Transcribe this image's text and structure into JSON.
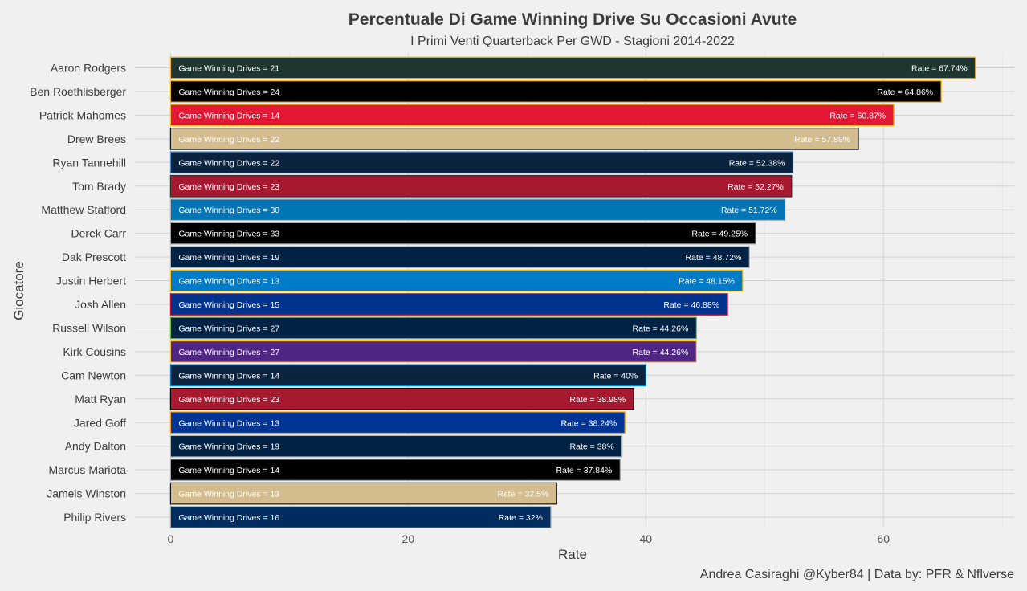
{
  "chart_data": {
    "type": "bar",
    "orientation": "horizontal",
    "title": "Percentuale Di Game Winning Drive Su Occasioni Avute",
    "subtitle": "I Primi Venti Quarterback Per GWD - Stagioni 2014-2022",
    "xlabel": "Rate",
    "ylabel": "Giocatore",
    "caption": "Andrea Casiraghi @Kyber84 | Data by: PFR & Nflverse",
    "xlim": [
      -3,
      71
    ],
    "xticks": [
      0,
      20,
      40,
      60
    ],
    "grid": true,
    "inner_label_prefix": "Game Winning Drives = ",
    "value_label_prefix": "Rate = ",
    "value_label_suffix": "%",
    "bars": [
      {
        "player": "Aaron Rodgers",
        "rate": 67.74,
        "rate_label": "67.74",
        "gwd": 21,
        "fill": "#203731",
        "border": "#FFB612",
        "text": "#ffffff"
      },
      {
        "player": "Ben Roethlisberger",
        "rate": 64.86,
        "rate_label": "64.86",
        "gwd": 24,
        "fill": "#000000",
        "border": "#FFB612",
        "text": "#ffffff"
      },
      {
        "player": "Patrick Mahomes",
        "rate": 60.87,
        "rate_label": "60.87",
        "gwd": 14,
        "fill": "#E31837",
        "border": "#FFB81C",
        "text": "#ffffff"
      },
      {
        "player": "Drew Brees",
        "rate": 57.89,
        "rate_label": "57.89",
        "gwd": 22,
        "fill": "#D3BC8D",
        "border": "#101820",
        "text": "#ffffff"
      },
      {
        "player": "Ryan Tannehill",
        "rate": 52.38,
        "rate_label": "52.38",
        "gwd": 22,
        "fill": "#0C2340",
        "border": "#4B92DB",
        "text": "#ffffff"
      },
      {
        "player": "Tom Brady",
        "rate": 52.27,
        "rate_label": "52.27",
        "gwd": 23,
        "fill": "#A71930",
        "border": "#322F2B",
        "text": "#ffffff"
      },
      {
        "player": "Matthew Stafford",
        "rate": 51.72,
        "rate_label": "51.72",
        "gwd": 30,
        "fill": "#0076B6",
        "border": "#B0B7BC",
        "text": "#ffffff"
      },
      {
        "player": "Derek Carr",
        "rate": 49.25,
        "rate_label": "49.25",
        "gwd": 33,
        "fill": "#000000",
        "border": "#A5ACAF",
        "text": "#ffffff"
      },
      {
        "player": "Dak Prescott",
        "rate": 48.72,
        "rate_label": "48.72",
        "gwd": 19,
        "fill": "#002244",
        "border": "#B0B7BC",
        "text": "#ffffff"
      },
      {
        "player": "Justin Herbert",
        "rate": 48.15,
        "rate_label": "48.15",
        "gwd": 13,
        "fill": "#007BC7",
        "border": "#FFC20E",
        "text": "#ffffff"
      },
      {
        "player": "Josh Allen",
        "rate": 46.88,
        "rate_label": "46.88",
        "gwd": 15,
        "fill": "#00338D",
        "border": "#C60C30",
        "text": "#ffffff"
      },
      {
        "player": "Russell Wilson",
        "rate": 44.26,
        "rate_label": "44.26",
        "gwd": 27,
        "fill": "#002244",
        "border": "#69BE28",
        "text": "#ffffff"
      },
      {
        "player": "Kirk Cousins",
        "rate": 44.26,
        "rate_label": "44.26",
        "gwd": 27,
        "fill": "#4F2683",
        "border": "#FFC62F",
        "text": "#ffffff"
      },
      {
        "player": "Cam Newton",
        "rate": 40,
        "rate_label": "40",
        "gwd": 14,
        "fill": "#0C2340",
        "border": "#0085CA",
        "text": "#ffffff"
      },
      {
        "player": "Matt Ryan",
        "rate": 38.98,
        "rate_label": "38.98",
        "gwd": 23,
        "fill": "#A71930",
        "border": "#000000",
        "text": "#ffffff"
      },
      {
        "player": "Jared Goff",
        "rate": 38.24,
        "rate_label": "38.24",
        "gwd": 13,
        "fill": "#003594",
        "border": "#FFA300",
        "text": "#ffffff"
      },
      {
        "player": "Andy Dalton",
        "rate": 38,
        "rate_label": "38",
        "gwd": 19,
        "fill": "#002244",
        "border": "#B0B7BC",
        "text": "#ffffff"
      },
      {
        "player": "Marcus Mariota",
        "rate": 37.84,
        "rate_label": "37.84",
        "gwd": 14,
        "fill": "#000000",
        "border": "#A5ACAF",
        "text": "#ffffff"
      },
      {
        "player": "Jameis Winston",
        "rate": 32.5,
        "rate_label": "32.5",
        "gwd": 13,
        "fill": "#D3BC8D",
        "border": "#101820",
        "text": "#ffffff"
      },
      {
        "player": "Philip Rivers",
        "rate": 32,
        "rate_label": "32",
        "gwd": 16,
        "fill": "#002C5F",
        "border": "#A2AAAD",
        "text": "#ffffff"
      }
    ]
  }
}
